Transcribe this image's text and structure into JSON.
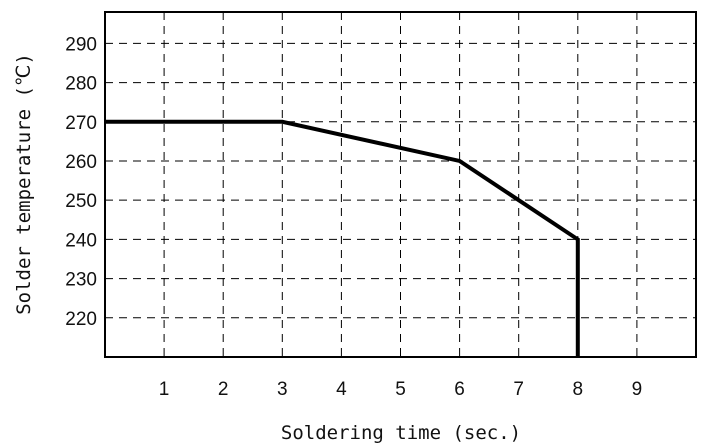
{
  "chart_data": {
    "type": "line",
    "title": "",
    "xlabel": "Soldering time (sec.)",
    "ylabel": "Solder temperature (℃)",
    "xlim": [
      0,
      10
    ],
    "ylim": [
      210,
      298
    ],
    "x_ticks": [
      1,
      2,
      3,
      4,
      5,
      6,
      7,
      8,
      9
    ],
    "x_tick_labels": [
      "1",
      "2",
      "3",
      "4",
      "5",
      "6",
      "7",
      "8",
      "9"
    ],
    "y_ticks": [
      220,
      230,
      240,
      250,
      260,
      270,
      280,
      290
    ],
    "y_tick_labels": [
      "220",
      "230",
      "240",
      "250",
      "260",
      "270",
      "280",
      "290"
    ],
    "grid": true,
    "grid_style": "dashed",
    "legend": "none",
    "series": [
      {
        "x": [
          0,
          3,
          6,
          8,
          8
        ],
        "y": [
          270,
          270,
          260,
          240,
          210
        ],
        "color": "#000000"
      }
    ]
  }
}
